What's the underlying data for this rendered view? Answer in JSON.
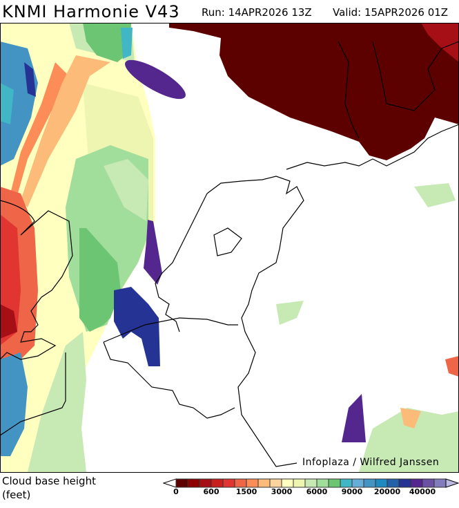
{
  "header": {
    "title": "KNMI Harmonie V43",
    "run": "Run: 14APR2026 13Z",
    "valid": "Valid: 15APR2026 01Z"
  },
  "map": {
    "credit": "Infoplaza / Wilfred Janssen"
  },
  "legend": {
    "label_line1": "Cloud base height",
    "label_line2": "(feet)",
    "colors": [
      "#5c0000",
      "#8b0000",
      "#a50f15",
      "#c8201f",
      "#e03530",
      "#ef6548",
      "#fc8d59",
      "#fdbb79",
      "#fdd49e",
      "#ffffbf",
      "#eef5b0",
      "#c7e9b4",
      "#a1dd9b",
      "#6cc573",
      "#41b6c4",
      "#67add8",
      "#4393c3",
      "#1f8ac0",
      "#2561a8",
      "#253494",
      "#54278f",
      "#6a51a3",
      "#807dba"
    ],
    "over_color": "#b8b8e0",
    "ticks": [
      "0",
      "600",
      "1500",
      "3000",
      "6000",
      "9000",
      "20000",
      "40000"
    ]
  }
}
